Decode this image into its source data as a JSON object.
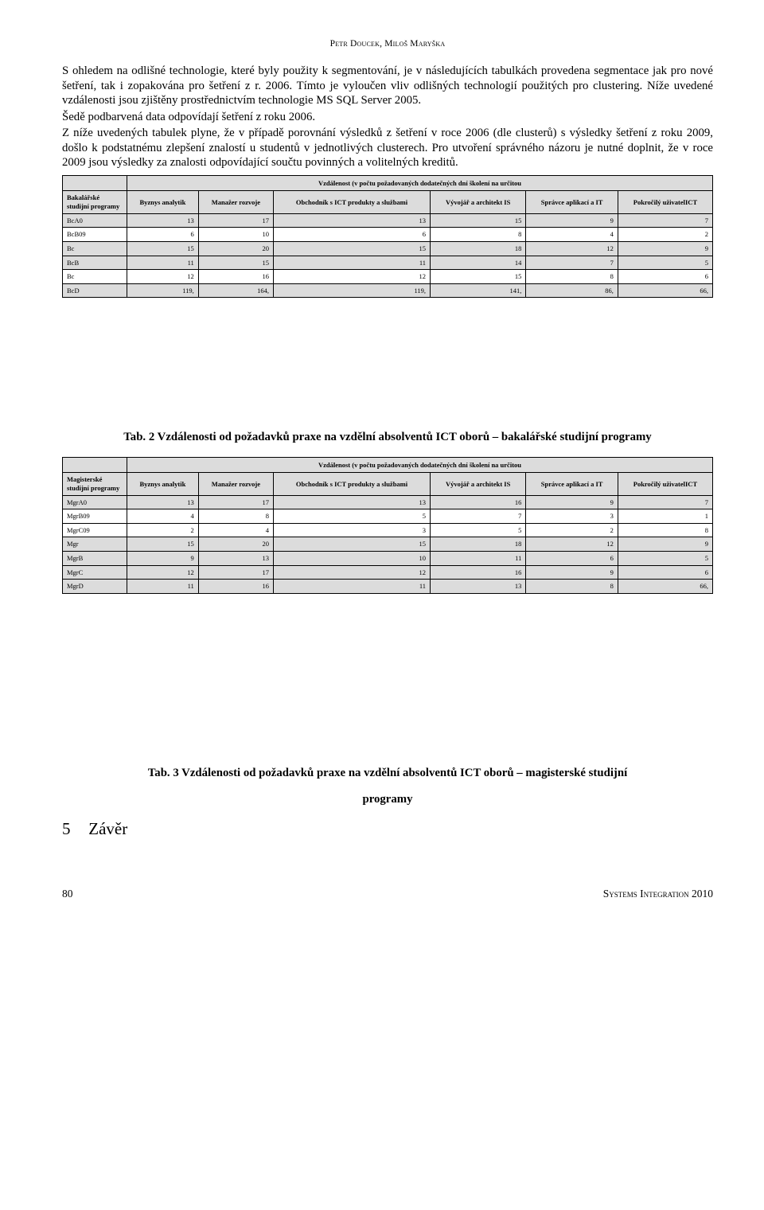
{
  "running_head": "Petr Doucek, Miloš Maryška",
  "paragraphs": {
    "p1": "S ohledem na odlišné technologie, které byly použity k segmentování, je v následujících tabulkách provedena segmentace jak pro nové šetření, tak i zopakována pro šetření z r. 2006. Tímto je vyloučen vliv odlišných technologií použitých pro clustering. Níže uvedené vzdálenosti jsou zjištěny prostřednictvím technologie MS SQL Server 2005.",
    "p2": "Šedě podbarvená data odpovídají šetření z roku 2006.",
    "p3": "Z níže uvedených tabulek plyne, že v případě porovnání výsledků z šetření v roce 2006 (dle clusterů) s výsledky šetření z roku 2009, došlo k podstatnému zlepšení znalostí u studentů v jednotlivých clusterech. Pro utvoření správného názoru je nutné doplnit, že v roce 2009 jsou výsledky za znalosti odpovídající součtu povinných a volitelných kreditů."
  },
  "table1": {
    "title": "Vzdálenost (v počtu požadovaných dodatečných dní školení na určitou",
    "row_header": "Bakalářské studijní programy",
    "columns": [
      "Byznys analytik",
      "Manažer rozvoje",
      "Obchodník s ICT produkty a službami",
      "Vývojář a architekt IS",
      "Správce aplikací a IT",
      "Pokročilý uživatelICT"
    ],
    "rows": [
      {
        "label": "BcA0",
        "grey": true,
        "cells": [
          "13",
          "17",
          "13",
          "15",
          "9",
          "7"
        ]
      },
      {
        "label": "BcB09",
        "grey": false,
        "cells": [
          "6",
          "10",
          "6",
          "8",
          "4",
          "2"
        ]
      },
      {
        "label": "Bc",
        "grey": true,
        "cells": [
          "15",
          "20",
          "15",
          "18",
          "12",
          "9"
        ]
      },
      {
        "label": "BcB",
        "grey": true,
        "cells": [
          "11",
          "15",
          "11",
          "14",
          "7",
          "5"
        ]
      },
      {
        "label": "Bc",
        "grey": false,
        "cells": [
          "12",
          "16",
          "12",
          "15",
          "8",
          "6"
        ]
      },
      {
        "label": "BcD",
        "grey": true,
        "cells": [
          "119,",
          "164,",
          "119,",
          "141,",
          "86,",
          "66,"
        ]
      }
    ],
    "caption": "Tab. 2 Vzdálenosti od požadavků praxe na vzdělní absolventů ICT oborů – bakalářské studijní programy"
  },
  "table2": {
    "title": "Vzdálenost (v počtu požadovaných dodatečných dní školení na určitou",
    "row_header": "Magisterské studijní programy",
    "columns": [
      "Byznys analytik",
      "Manažer rozvoje",
      "Obchodník s ICT produkty a službami",
      "Vývojář a architekt IS",
      "Správce aplikací a IT",
      "Pokročilý uživatelICT"
    ],
    "rows": [
      {
        "label": "MgrA0",
        "grey": true,
        "cells": [
          "13",
          "17",
          "13",
          "16",
          "9",
          "7"
        ]
      },
      {
        "label": "MgrB09",
        "grey": false,
        "cells": [
          "4",
          "8",
          "5",
          "7",
          "3",
          "1"
        ]
      },
      {
        "label": "MgrC09",
        "grey": false,
        "cells": [
          "2",
          "4",
          "3",
          "5",
          "2",
          "8"
        ]
      },
      {
        "label": "Mgr",
        "grey": true,
        "cells": [
          "15",
          "20",
          "15",
          "18",
          "12",
          "9"
        ]
      },
      {
        "label": "MgrB",
        "grey": true,
        "cells": [
          "9",
          "13",
          "10",
          "11",
          "6",
          "5"
        ]
      },
      {
        "label": "MgrC",
        "grey": true,
        "cells": [
          "12",
          "17",
          "12",
          "16",
          "9",
          "6"
        ]
      },
      {
        "label": "MgrD",
        "grey": true,
        "cells": [
          "11",
          "16",
          "11",
          "13",
          "8",
          "66,"
        ]
      }
    ],
    "caption_line1": "Tab. 3 Vzdálenosti od požadavků praxe na vzdělní absolventů ICT oborů – magisterské studijní",
    "caption_line2": "programy"
  },
  "section": {
    "num": "5",
    "title": "Závěr"
  },
  "footer": {
    "page": "80",
    "pub": "Systems Integration 2010"
  }
}
